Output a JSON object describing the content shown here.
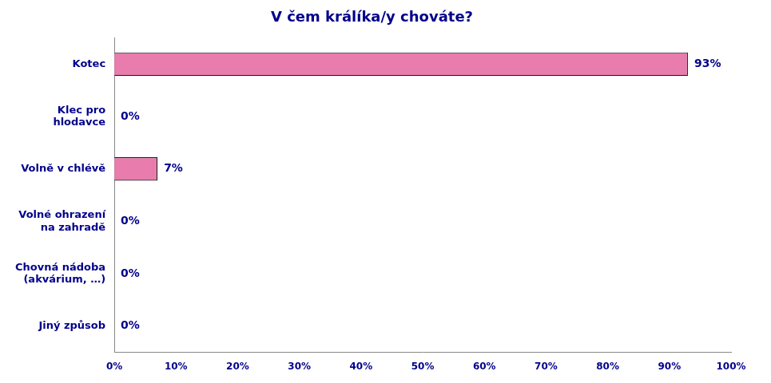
{
  "chart_data": {
    "type": "bar",
    "orientation": "horizontal",
    "title": "V čem králíka/y chováte?",
    "categories": [
      "Kotec",
      "Klec pro\nhlodavce",
      "Volně v chlévě",
      "Volné ohrazení\nna zahradě",
      "Chovná nádoba\n(akvárium, …)",
      "Jiný způsob"
    ],
    "values": [
      93,
      0,
      7,
      0,
      0,
      0
    ],
    "value_labels": [
      "93%",
      "0%",
      "7%",
      "0%",
      "0%",
      "0%"
    ],
    "data_labels": true,
    "color": "#e87cac",
    "xlim": [
      0,
      100
    ],
    "xticks": [
      {
        "value": 0,
        "label": "0%"
      },
      {
        "value": 10,
        "label": "10%"
      },
      {
        "value": 20,
        "label": "20%"
      },
      {
        "value": 30,
        "label": "30%"
      },
      {
        "value": 40,
        "label": "40%"
      },
      {
        "value": 50,
        "label": "50%"
      },
      {
        "value": 60,
        "label": "60%"
      },
      {
        "value": 70,
        "label": "70%"
      },
      {
        "value": 80,
        "label": "80%"
      },
      {
        "value": 90,
        "label": "90%"
      },
      {
        "value": 100,
        "label": "100%"
      }
    ],
    "grid": false
  }
}
